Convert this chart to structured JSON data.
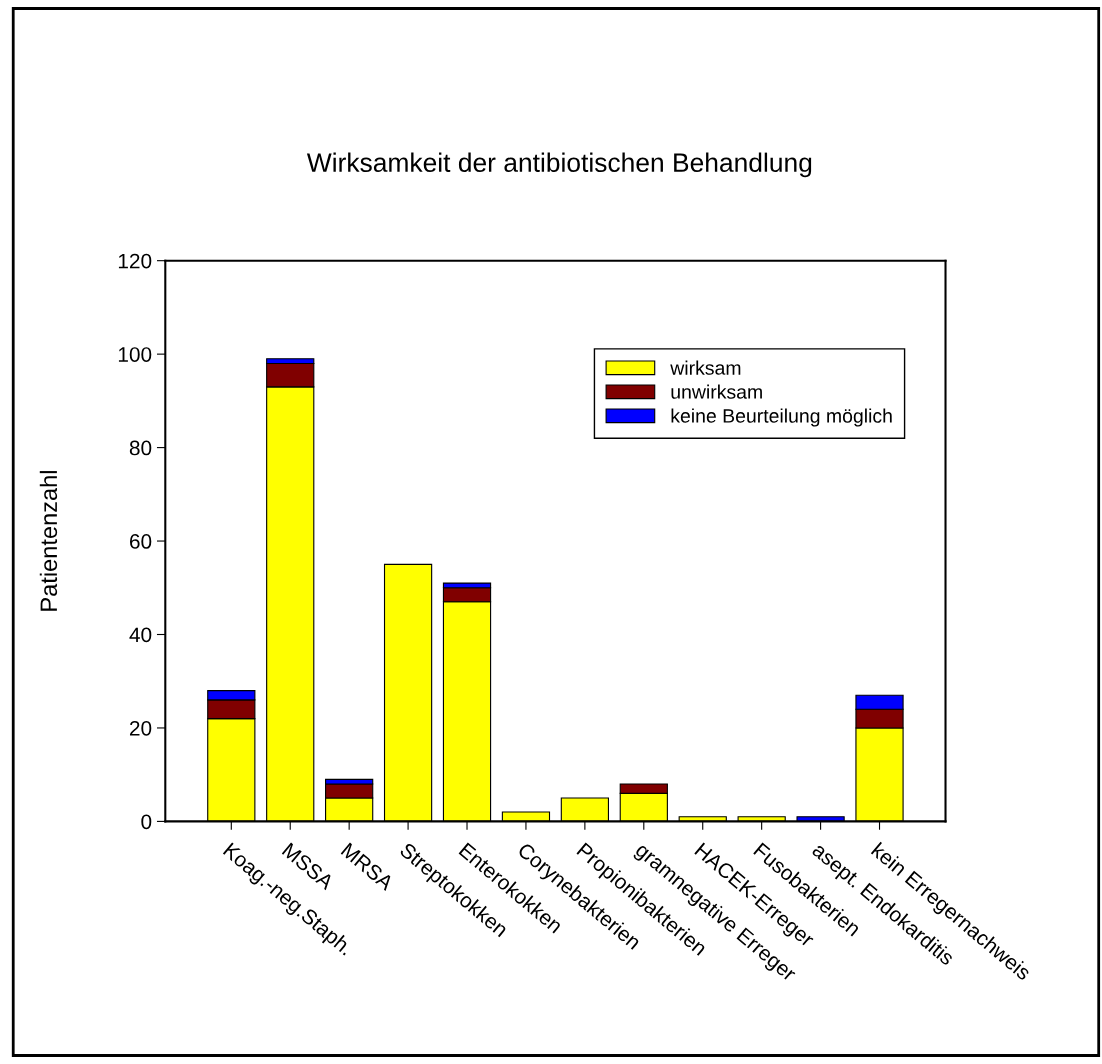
{
  "chart_data": {
    "type": "bar",
    "title": "Wirksamkeit der antibiotischen Behandlung",
    "ylabel": "Patientenzahl",
    "categories": [
      "Koag.-neg.Staph.",
      "MSSA",
      "MRSA",
      "Streptokokken",
      "Enterokokken",
      "Corynebakterien",
      "Propionibakterien",
      "gramnegative Erreger",
      "HACEK-Erreger",
      "Fusobakterien",
      "asept. Endokarditis",
      "kein Erregernachweis"
    ],
    "stacked": true,
    "series": [
      {
        "name": "wirksam",
        "color": "#ffff00",
        "values": [
          22,
          93,
          5,
          55,
          47,
          2,
          5,
          6,
          1,
          1,
          0,
          20
        ]
      },
      {
        "name": "unwirksam",
        "color": "#800000",
        "values": [
          4,
          5,
          3,
          0,
          3,
          0,
          0,
          2,
          0,
          0,
          0,
          4
        ]
      },
      {
        "name": "keine Beurteilung möglich",
        "color": "#0000ff",
        "values": [
          2,
          1,
          1,
          0,
          1,
          0,
          0,
          0,
          0,
          0,
          1,
          3
        ]
      }
    ],
    "ylim": [
      0,
      120
    ],
    "yticks": [
      0,
      20,
      40,
      60,
      80,
      100,
      120
    ],
    "grid": false,
    "legend": "top right"
  }
}
